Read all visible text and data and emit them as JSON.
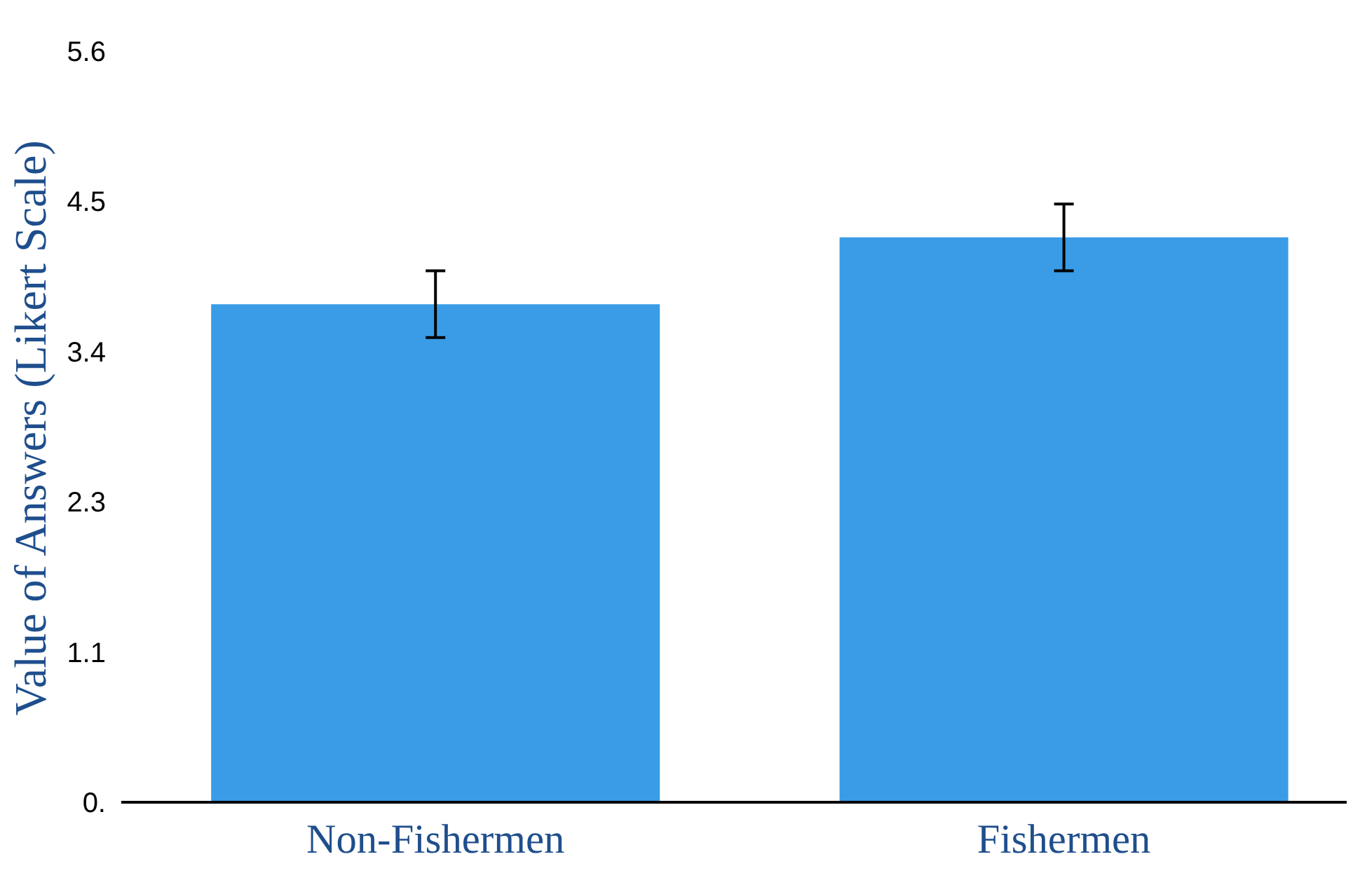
{
  "chart_data": {
    "type": "bar",
    "ylabel": "Value of Answers (Likert Scale)",
    "categories": [
      "Non-Fishermen",
      "Fishermen"
    ],
    "values": [
      3.73,
      4.23
    ],
    "errors": [
      0.25,
      0.25
    ],
    "color": "#3a9ce6",
    "ylim": [
      0,
      5.625
    ],
    "yticks": [
      {
        "value": 0,
        "label": "0."
      },
      {
        "value": 1.125,
        "label": "1.1"
      },
      {
        "value": 2.25,
        "label": "2.3"
      },
      {
        "value": 3.375,
        "label": "3.4"
      },
      {
        "value": 4.5,
        "label": "4.5"
      },
      {
        "value": 5.625,
        "label": "5.6"
      }
    ],
    "grid": false
  }
}
